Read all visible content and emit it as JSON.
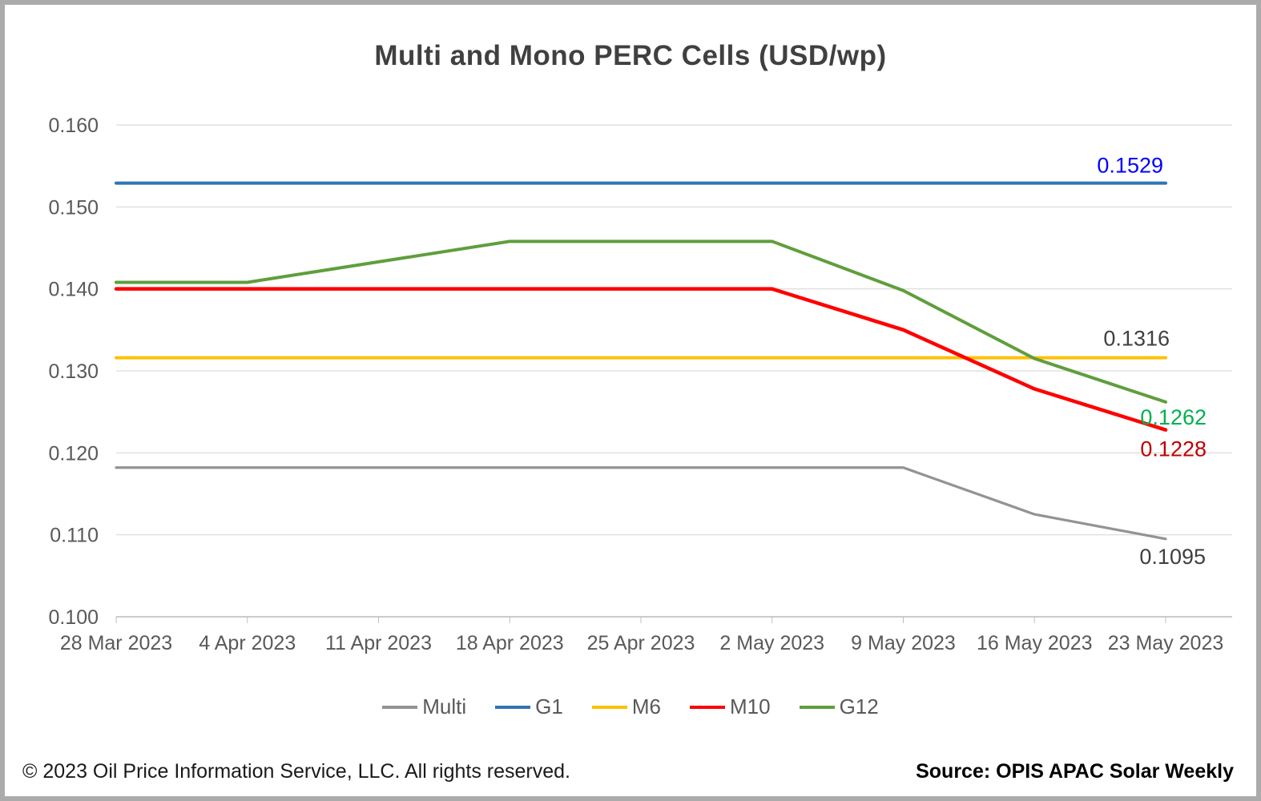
{
  "chart_data": {
    "type": "line",
    "title": "Multi and Mono PERC Cells (USD/wp)",
    "categories": [
      "28 Mar 2023",
      "4 Apr 2023",
      "11 Apr 2023",
      "18 Apr 2023",
      "25 Apr 2023",
      "2 May 2023",
      "9 May 2023",
      "16 May 2023",
      "23 May 2023"
    ],
    "series": [
      {
        "name": "Multi",
        "color": "#939393",
        "values": [
          0.1182,
          0.1182,
          0.1182,
          0.1182,
          0.1182,
          0.1182,
          0.1182,
          0.1125,
          0.1095
        ],
        "end_label": "0.1095",
        "end_label_color": "#3f3f3f"
      },
      {
        "name": "G1",
        "color": "#2E75B6",
        "values": [
          0.1529,
          0.1529,
          0.1529,
          0.1529,
          0.1529,
          0.1529,
          0.1529,
          0.1529,
          0.1529
        ],
        "end_label": "0.1529",
        "end_label_color": "#0000FF"
      },
      {
        "name": "M6",
        "color": "#FFC000",
        "values": [
          0.1316,
          0.1316,
          0.1316,
          0.1316,
          0.1316,
          0.1316,
          0.1316,
          0.1316,
          0.1316
        ],
        "end_label": "0.1316",
        "end_label_color": "#3f3f3f"
      },
      {
        "name": "M10",
        "color": "#FF0000",
        "values": [
          0.14,
          0.14,
          0.14,
          0.14,
          0.14,
          0.14,
          0.135,
          0.1278,
          0.1228
        ],
        "end_label": "0.1228",
        "end_label_color": "#C00000"
      },
      {
        "name": "G12",
        "color": "#5F9E3C",
        "values": [
          0.1408,
          0.1408,
          0.1433,
          0.1458,
          0.1458,
          0.1458,
          0.1398,
          0.1315,
          0.1262
        ],
        "end_label": "0.1262",
        "end_label_color": "#00B050"
      }
    ],
    "ylim": [
      0.1,
      0.16
    ],
    "yticks": [
      "0.160",
      "0.150",
      "0.140",
      "0.130",
      "0.120",
      "0.110",
      "0.100"
    ],
    "grid": "horizontal",
    "legend_position": "bottom"
  },
  "footer": {
    "copyright": "© 2023 Oil Price Information Service, LLC. All rights reserved.",
    "source": "Source: OPIS APAC Solar Weekly"
  }
}
